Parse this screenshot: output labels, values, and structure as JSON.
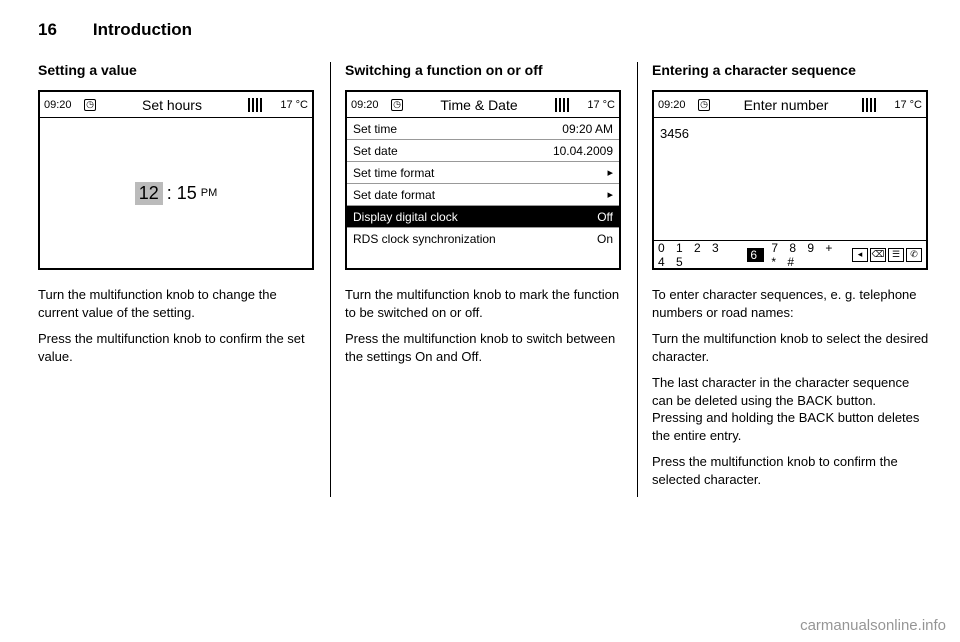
{
  "page": {
    "number": "16",
    "chapter": "Introduction"
  },
  "col1": {
    "heading": "Setting a value",
    "screen": {
      "time": "09:20",
      "title": "Set hours",
      "temp": "17 °C",
      "hours": "12",
      "minutes": "15",
      "suffix": "PM"
    },
    "p1": "Turn the multifunction knob to change the current value of the setting.",
    "p2": "Press the multifunction knob to confirm the set value."
  },
  "col2": {
    "heading": "Switching a function on or off",
    "screen": {
      "time": "09:20",
      "title": "Time & Date",
      "temp": "17 °C",
      "rows": {
        "r0": {
          "label": "Set time",
          "value": "09:20 AM"
        },
        "r1": {
          "label": "Set date",
          "value": "10.04.2009"
        },
        "r2": {
          "label": "Set time format"
        },
        "r3": {
          "label": "Set date format"
        },
        "r4": {
          "label": "Display digital clock",
          "value": "Off"
        },
        "r5": {
          "label": "RDS clock synchronization",
          "value": "On"
        }
      }
    },
    "p1": "Turn the multifunction knob to mark the function to be switched on or off.",
    "p2": "Press the multifunction knob to switch between the settings On and Off."
  },
  "col3": {
    "heading": "Entering a character sequence",
    "screen": {
      "time": "09:20",
      "title": "Enter number",
      "temp": "17 °C",
      "entered": "3456",
      "keys_left": "0 1 2 3 4 5",
      "keys_six": "6",
      "keys_right": "7 8 9 + * #"
    },
    "p1": "To enter character sequences, e. g. telephone numbers or road names:",
    "p2": "Turn the multifunction knob to select the desired character.",
    "p3": "The last character in the character sequence can be deleted using the BACK button. Pressing and holding the BACK button deletes the entire entry.",
    "p4": "Press the multifunction knob to confirm the selected character."
  },
  "watermark": "carmanualsonline.info"
}
